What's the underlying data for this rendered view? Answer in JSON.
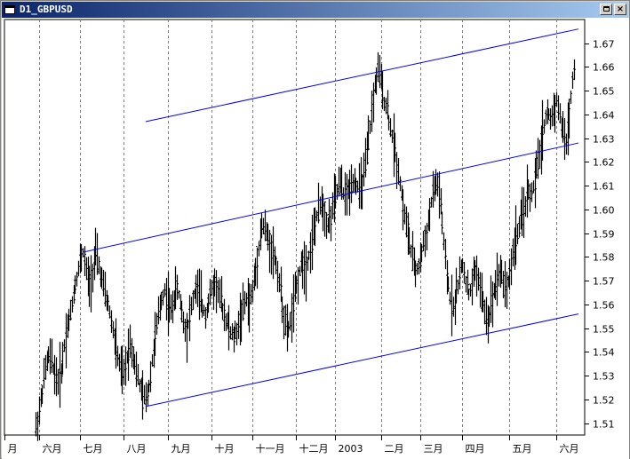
{
  "window": {
    "title": "D1_GBPUSD",
    "close_glyph": "×",
    "icons": [
      "window-menu-icon",
      "maximize-icon",
      "close-icon"
    ]
  },
  "colors": {
    "background": "#ffffff",
    "candles": "#000000",
    "channel_lines": "#0000ff",
    "grid": "#808080",
    "titlebar_start": "#0a246a",
    "titlebar_end": "#a6caf0"
  },
  "chart_data": {
    "type": "line",
    "symbol": "GBPUSD",
    "timeframe": "D1",
    "title": "",
    "xlabel": "",
    "ylabel": "",
    "ylim": [
      1.505,
      1.68
    ],
    "y_ticks": [
      "1.51",
      "1.52",
      "1.53",
      "1.54",
      "1.55",
      "1.56",
      "1.57",
      "1.58",
      "1.59",
      "1.60",
      "1.61",
      "1.62",
      "1.63",
      "1.64",
      "1.65",
      "1.66",
      "1.67"
    ],
    "x_ticks": [
      "月",
      "六月",
      "七月",
      "八月",
      "九月",
      "十月",
      "十一月",
      "十二月",
      "2003",
      "二月",
      "三月",
      "四月",
      "五月",
      "六月"
    ],
    "grid": true,
    "series": [
      {
        "values": [
          [
            20,
            1.508
          ],
          [
            22,
            1.515
          ],
          [
            24,
            1.524
          ],
          [
            26,
            1.533
          ],
          [
            28,
            1.538
          ],
          [
            30,
            1.536
          ],
          [
            32,
            1.531
          ],
          [
            34,
            1.528
          ],
          [
            36,
            1.532
          ],
          [
            38,
            1.543
          ],
          [
            40,
            1.551
          ],
          [
            42,
            1.556
          ],
          [
            44,
            1.565
          ],
          [
            46,
            1.572
          ],
          [
            48,
            1.578
          ],
          [
            50,
            1.582
          ],
          [
            52,
            1.574
          ],
          [
            54,
            1.568
          ],
          [
            56,
            1.574
          ],
          [
            58,
            1.581
          ],
          [
            60,
            1.576
          ],
          [
            62,
            1.57
          ],
          [
            64,
            1.564
          ],
          [
            66,
            1.56
          ],
          [
            68,
            1.553
          ],
          [
            70,
            1.545
          ],
          [
            72,
            1.538
          ],
          [
            74,
            1.532
          ],
          [
            76,
            1.53
          ],
          [
            78,
            1.538
          ],
          [
            80,
            1.544
          ],
          [
            82,
            1.539
          ],
          [
            84,
            1.532
          ],
          [
            86,
            1.526
          ],
          [
            88,
            1.521
          ],
          [
            90,
            1.52
          ],
          [
            92,
            1.526
          ],
          [
            94,
            1.536
          ],
          [
            96,
            1.546
          ],
          [
            98,
            1.555
          ],
          [
            100,
            1.562
          ],
          [
            102,
            1.566
          ],
          [
            104,
            1.561
          ],
          [
            106,
            1.557
          ],
          [
            108,
            1.563
          ],
          [
            110,
            1.567
          ],
          [
            112,
            1.561
          ],
          [
            114,
            1.553
          ],
          [
            116,
            1.549
          ],
          [
            118,
            1.555
          ],
          [
            120,
            1.562
          ],
          [
            122,
            1.567
          ],
          [
            124,
            1.564
          ],
          [
            126,
            1.559
          ],
          [
            128,
            1.556
          ],
          [
            130,
            1.561
          ],
          [
            132,
            1.566
          ],
          [
            134,
            1.569
          ],
          [
            136,
            1.566
          ],
          [
            138,
            1.561
          ],
          [
            140,
            1.556
          ],
          [
            142,
            1.552
          ],
          [
            144,
            1.548
          ],
          [
            146,
            1.546
          ],
          [
            148,
            1.549
          ],
          [
            150,
            1.554
          ],
          [
            152,
            1.558
          ],
          [
            154,
            1.562
          ],
          [
            156,
            1.56
          ],
          [
            158,
            1.566
          ],
          [
            160,
            1.574
          ],
          [
            162,
            1.585
          ],
          [
            164,
            1.593
          ],
          [
            166,
            1.592
          ],
          [
            168,
            1.587
          ],
          [
            170,
            1.584
          ],
          [
            172,
            1.58
          ],
          [
            174,
            1.574
          ],
          [
            176,
            1.565
          ],
          [
            178,
            1.555
          ],
          [
            180,
            1.548
          ],
          [
            182,
            1.552
          ],
          [
            184,
            1.56
          ],
          [
            186,
            1.568
          ],
          [
            188,
            1.574
          ],
          [
            190,
            1.578
          ],
          [
            192,
            1.576
          ],
          [
            194,
            1.581
          ],
          [
            196,
            1.587
          ],
          [
            198,
            1.594
          ],
          [
            200,
            1.599
          ],
          [
            202,
            1.604
          ],
          [
            204,
            1.598
          ],
          [
            206,
            1.594
          ],
          [
            208,
            1.597
          ],
          [
            210,
            1.603
          ],
          [
            212,
            1.608
          ],
          [
            214,
            1.611
          ],
          [
            216,
            1.607
          ],
          [
            218,
            1.606
          ],
          [
            220,
            1.609
          ],
          [
            222,
            1.613
          ],
          [
            224,
            1.611
          ],
          [
            226,
            1.608
          ],
          [
            228,
            1.611
          ],
          [
            230,
            1.618
          ],
          [
            232,
            1.629
          ],
          [
            234,
            1.641
          ],
          [
            236,
            1.652
          ],
          [
            238,
            1.658
          ],
          [
            240,
            1.654
          ],
          [
            242,
            1.646
          ],
          [
            244,
            1.642
          ],
          [
            246,
            1.634
          ],
          [
            248,
            1.628
          ],
          [
            250,
            1.62
          ],
          [
            252,
            1.612
          ],
          [
            254,
            1.601
          ],
          [
            256,
            1.594
          ],
          [
            258,
            1.586
          ],
          [
            260,
            1.579
          ],
          [
            262,
            1.574
          ],
          [
            264,
            1.576
          ],
          [
            266,
            1.582
          ],
          [
            268,
            1.588
          ],
          [
            270,
            1.594
          ],
          [
            272,
            1.603
          ],
          [
            274,
            1.609
          ],
          [
            276,
            1.611
          ],
          [
            278,
            1.602
          ],
          [
            280,
            1.585
          ],
          [
            282,
            1.572
          ],
          [
            284,
            1.563
          ],
          [
            286,
            1.559
          ],
          [
            288,
            1.565
          ],
          [
            290,
            1.572
          ],
          [
            292,
            1.577
          ],
          [
            294,
            1.57
          ],
          [
            296,
            1.564
          ],
          [
            298,
            1.568
          ],
          [
            300,
            1.575
          ],
          [
            302,
            1.571
          ],
          [
            304,
            1.563
          ],
          [
            306,
            1.557
          ],
          [
            308,
            1.553
          ],
          [
            310,
            1.56
          ],
          [
            312,
            1.566
          ],
          [
            314,
            1.572
          ],
          [
            316,
            1.574
          ],
          [
            318,
            1.57
          ],
          [
            320,
            1.567
          ],
          [
            322,
            1.573
          ],
          [
            324,
            1.581
          ],
          [
            326,
            1.589
          ],
          [
            328,
            1.592
          ],
          [
            330,
            1.597
          ],
          [
            332,
            1.603
          ],
          [
            334,
            1.608
          ],
          [
            336,
            1.606
          ],
          [
            338,
            1.612
          ],
          [
            340,
            1.62
          ],
          [
            342,
            1.628
          ],
          [
            344,
            1.636
          ],
          [
            346,
            1.641
          ],
          [
            348,
            1.638
          ],
          [
            350,
            1.642
          ],
          [
            352,
            1.646
          ],
          [
            354,
            1.639
          ],
          [
            356,
            1.632
          ],
          [
            358,
            1.628
          ],
          [
            360,
            1.64
          ],
          [
            362,
            1.655
          ],
          [
            364,
            1.666
          ]
        ]
      }
    ],
    "channel_lines": [
      {
        "x": [
          90,
          366
        ],
        "y": [
          1.637,
          1.676
        ]
      },
      {
        "x": [
          50,
          366
        ],
        "y": [
          1.582,
          1.628
        ]
      },
      {
        "x": [
          90,
          366
        ],
        "y": [
          1.517,
          1.556
        ]
      }
    ]
  }
}
